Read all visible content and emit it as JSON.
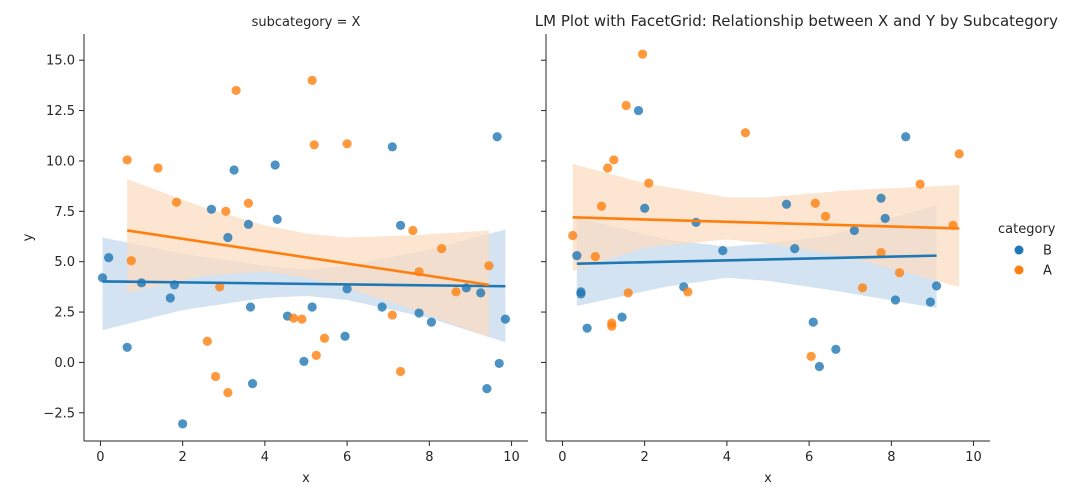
{
  "chart_data": {
    "type": "scatter",
    "title": "LM Plot with FacetGrid: Relationship between X and Y by Subcategory",
    "xlabel": "x",
    "ylabel": "y",
    "xlim": [
      -0.4,
      10.4
    ],
    "ylim": [
      -3.9,
      16.3
    ],
    "xticks": [
      "0",
      "2",
      "4",
      "6",
      "8",
      "10"
    ],
    "yticks": [
      "−2.5",
      "0.0",
      "2.5",
      "5.0",
      "7.5",
      "10.0",
      "12.5",
      "15.0"
    ],
    "grid": false,
    "legend": {
      "title": "category",
      "placement": "right",
      "entries": [
        "B",
        "A"
      ]
    },
    "colors": {
      "B": "#1f77b4",
      "A": "#ff7f0e",
      "B_band": "#c4d9ec",
      "A_band": "#fbdcc2"
    },
    "facets": [
      {
        "title": "subcategory = X",
        "series": [
          {
            "name": "B",
            "points": [
              [
                0.05,
                4.2
              ],
              [
                0.2,
                5.2
              ],
              [
                0.65,
                0.75
              ],
              [
                1.0,
                3.95
              ],
              [
                1.7,
                3.2
              ],
              [
                1.8,
                3.85
              ],
              [
                2.0,
                -3.05
              ],
              [
                2.7,
                7.6
              ],
              [
                3.1,
                6.2
              ],
              [
                3.25,
                9.55
              ],
              [
                3.6,
                6.85
              ],
              [
                3.65,
                2.75
              ],
              [
                3.7,
                -1.05
              ],
              [
                4.25,
                9.8
              ],
              [
                4.3,
                7.1
              ],
              [
                4.55,
                2.3
              ],
              [
                4.95,
                0.05
              ],
              [
                5.15,
                2.75
              ],
              [
                5.95,
                1.3
              ],
              [
                6.0,
                3.65
              ],
              [
                6.85,
                2.75
              ],
              [
                7.1,
                10.7
              ],
              [
                7.3,
                6.8
              ],
              [
                7.75,
                2.45
              ],
              [
                8.05,
                2.0
              ],
              [
                8.9,
                3.7
              ],
              [
                9.25,
                3.45
              ],
              [
                9.4,
                -1.3
              ],
              [
                9.65,
                11.2
              ],
              [
                9.7,
                -0.05
              ],
              [
                9.85,
                2.15
              ]
            ],
            "fit": [
              [
                0.05,
                4.02
              ],
              [
                9.85,
                3.78
              ]
            ],
            "band_upper": [
              [
                0.05,
                6.2
              ],
              [
                2.0,
                5.4
              ],
              [
                4.0,
                4.8
              ],
              [
                5.0,
                4.6
              ],
              [
                6.0,
                4.8
              ],
              [
                8.0,
                5.6
              ],
              [
                9.85,
                6.6
              ]
            ],
            "band_lower": [
              [
                0.05,
                1.6
              ],
              [
                2.0,
                2.6
              ],
              [
                4.0,
                3.2
              ],
              [
                5.0,
                3.3
              ],
              [
                6.0,
                3.1
              ],
              [
                8.0,
                2.2
              ],
              [
                9.85,
                1.0
              ]
            ]
          },
          {
            "name": "A",
            "points": [
              [
                0.65,
                10.05
              ],
              [
                0.75,
                5.05
              ],
              [
                1.4,
                9.65
              ],
              [
                1.85,
                7.95
              ],
              [
                2.6,
                1.05
              ],
              [
                2.8,
                -0.7
              ],
              [
                2.9,
                3.75
              ],
              [
                3.05,
                7.5
              ],
              [
                3.1,
                -1.5
              ],
              [
                3.3,
                13.5
              ],
              [
                3.6,
                7.9
              ],
              [
                4.7,
                2.2
              ],
              [
                4.9,
                2.15
              ],
              [
                5.15,
                14.0
              ],
              [
                5.2,
                10.8
              ],
              [
                5.25,
                0.35
              ],
              [
                5.45,
                1.2
              ],
              [
                6.0,
                10.85
              ],
              [
                7.1,
                2.35
              ],
              [
                7.3,
                -0.45
              ],
              [
                7.6,
                6.55
              ],
              [
                7.75,
                4.5
              ],
              [
                8.3,
                5.65
              ],
              [
                8.65,
                3.5
              ],
              [
                9.45,
                4.8
              ]
            ],
            "fit": [
              [
                0.65,
                6.55
              ],
              [
                9.45,
                3.85
              ]
            ],
            "band_upper": [
              [
                0.65,
                9.1
              ],
              [
                2.5,
                7.7
              ],
              [
                4.0,
                6.8
              ],
              [
                5.0,
                6.4
              ],
              [
                6.0,
                6.2
              ],
              [
                7.5,
                6.3
              ],
              [
                9.45,
                6.55
              ]
            ],
            "band_lower": [
              [
                0.65,
                3.45
              ],
              [
                2.5,
                4.3
              ],
              [
                4.0,
                4.5
              ],
              [
                5.0,
                4.2
              ],
              [
                6.0,
                3.7
              ],
              [
                7.5,
                2.7
              ],
              [
                9.45,
                1.25
              ]
            ]
          }
        ]
      },
      {
        "title": "",
        "series": [
          {
            "name": "B",
            "points": [
              [
                0.35,
                5.3
              ],
              [
                0.45,
                3.4
              ],
              [
                0.45,
                3.5
              ],
              [
                0.6,
                1.7
              ],
              [
                1.45,
                2.25
              ],
              [
                1.85,
                12.5
              ],
              [
                2.0,
                7.65
              ],
              [
                2.95,
                3.75
              ],
              [
                3.25,
                6.95
              ],
              [
                3.9,
                5.55
              ],
              [
                5.45,
                7.85
              ],
              [
                5.65,
                5.65
              ],
              [
                6.1,
                2.0
              ],
              [
                6.25,
                -0.2
              ],
              [
                6.65,
                0.65
              ],
              [
                7.1,
                6.55
              ],
              [
                7.75,
                8.15
              ],
              [
                7.85,
                7.15
              ],
              [
                8.1,
                3.1
              ],
              [
                8.35,
                11.2
              ],
              [
                8.95,
                3.0
              ],
              [
                9.1,
                3.8
              ]
            ],
            "fit": [
              [
                0.35,
                4.9
              ],
              [
                9.1,
                5.3
              ]
            ],
            "band_upper": [
              [
                0.35,
                7.2
              ],
              [
                2.5,
                6.1
              ],
              [
                4.0,
                5.75
              ],
              [
                5.0,
                5.9
              ],
              [
                6.5,
                6.3
              ],
              [
                9.1,
                7.8
              ]
            ],
            "band_lower": [
              [
                0.35,
                2.8
              ],
              [
                2.5,
                3.75
              ],
              [
                4.0,
                4.2
              ],
              [
                5.0,
                4.05
              ],
              [
                6.5,
                3.6
              ],
              [
                9.1,
                2.7
              ]
            ]
          },
          {
            "name": "A",
            "points": [
              [
                0.25,
                6.3
              ],
              [
                0.8,
                5.25
              ],
              [
                0.95,
                7.75
              ],
              [
                1.1,
                9.65
              ],
              [
                1.2,
                1.8
              ],
              [
                1.2,
                1.95
              ],
              [
                1.25,
                10.05
              ],
              [
                1.55,
                12.75
              ],
              [
                1.6,
                3.45
              ],
              [
                1.95,
                15.3
              ],
              [
                2.1,
                8.9
              ],
              [
                3.05,
                3.5
              ],
              [
                4.45,
                11.4
              ],
              [
                6.05,
                0.3
              ],
              [
                6.15,
                7.9
              ],
              [
                6.4,
                7.25
              ],
              [
                7.3,
                3.7
              ],
              [
                7.75,
                5.45
              ],
              [
                8.2,
                4.45
              ],
              [
                8.7,
                8.85
              ],
              [
                9.5,
                6.8
              ],
              [
                9.65,
                10.35
              ]
            ],
            "fit": [
              [
                0.25,
                7.2
              ],
              [
                9.65,
                6.65
              ]
            ],
            "band_upper": [
              [
                0.25,
                9.85
              ],
              [
                2.0,
                8.9
              ],
              [
                4.0,
                8.2
              ],
              [
                5.0,
                8.2
              ],
              [
                7.0,
                8.55
              ],
              [
                9.65,
                8.8
              ]
            ],
            "band_lower": [
              [
                0.25,
                4.55
              ],
              [
                2.0,
                5.7
              ],
              [
                4.0,
                6.1
              ],
              [
                5.0,
                5.9
              ],
              [
                7.0,
                5.2
              ],
              [
                9.65,
                3.75
              ]
            ]
          }
        ]
      }
    ]
  }
}
